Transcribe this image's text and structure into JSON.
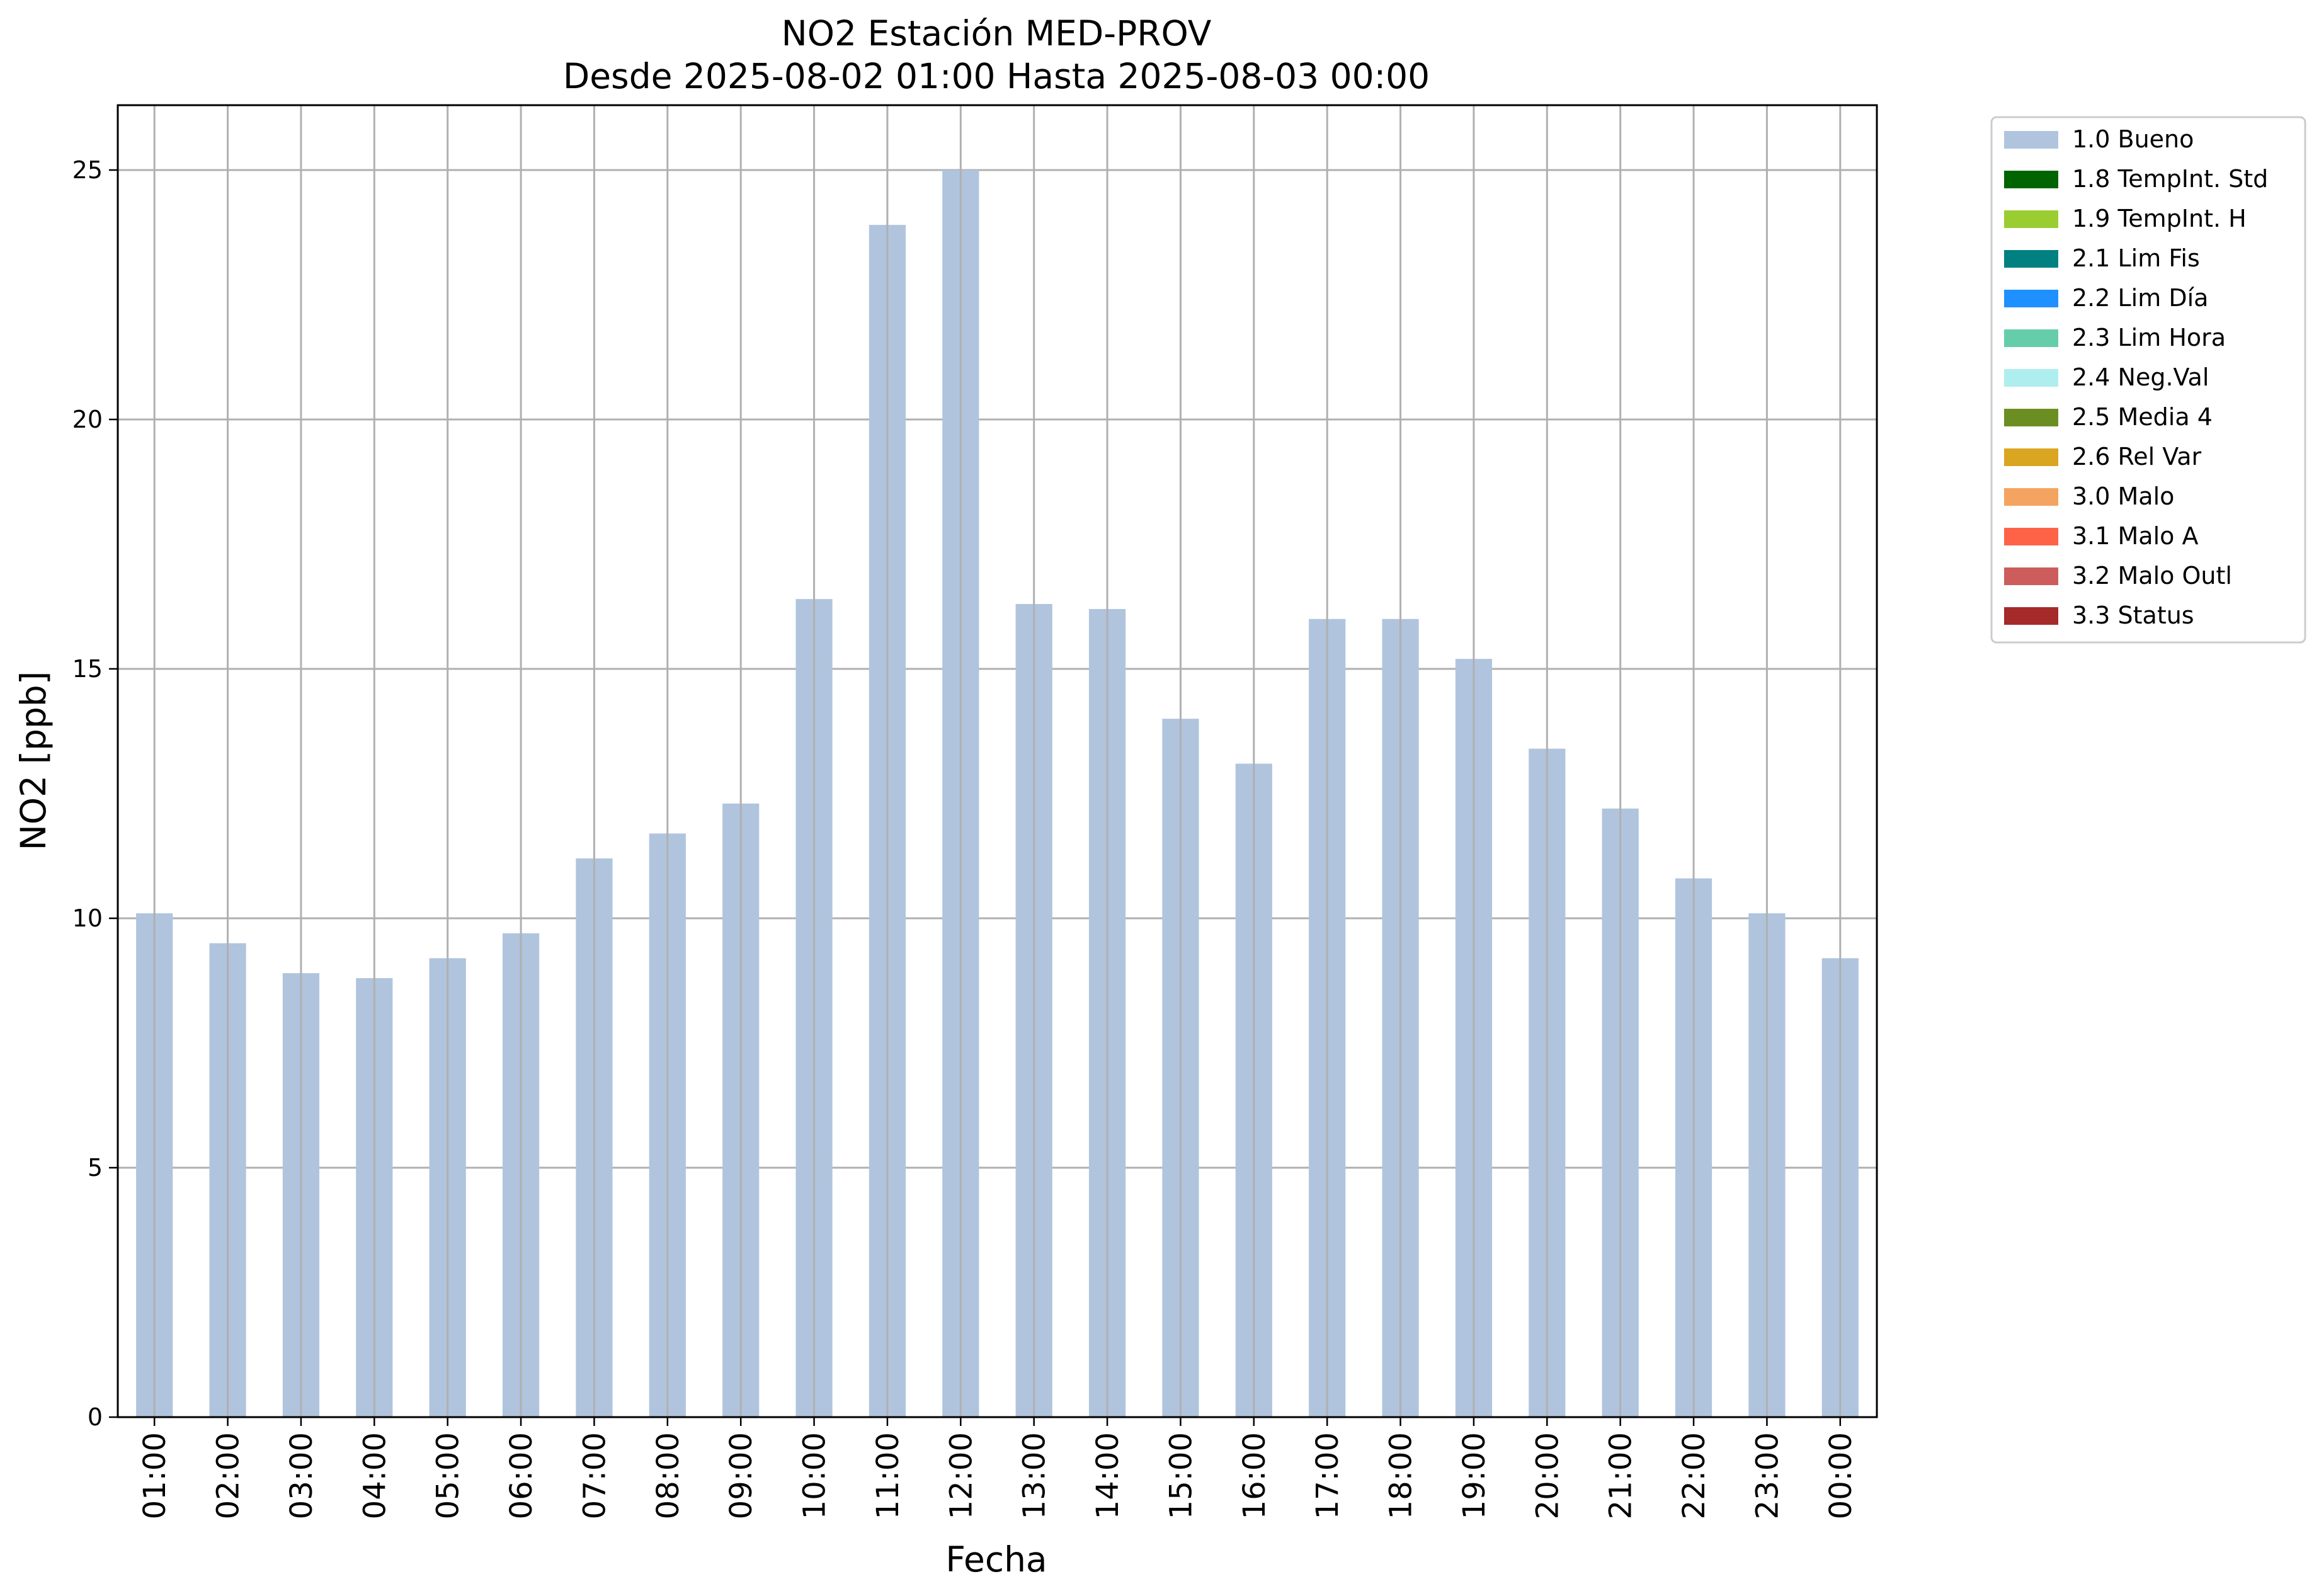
{
  "chart_data": {
    "type": "bar",
    "title": "NO2 Estación MED-PROV",
    "subtitle": "Desde 2025-08-02 01:00 Hasta 2025-08-03 00:00",
    "xlabel": "Fecha",
    "ylabel": "NO2 [ppb]",
    "ylim": [
      0,
      26.3
    ],
    "yticks": [
      0,
      5,
      10,
      15,
      20,
      25
    ],
    "grid": true,
    "legend_placement": "outside-top-right",
    "categories": [
      "01:00",
      "02:00",
      "03:00",
      "04:00",
      "05:00",
      "06:00",
      "07:00",
      "08:00",
      "09:00",
      "10:00",
      "11:00",
      "12:00",
      "13:00",
      "14:00",
      "15:00",
      "16:00",
      "17:00",
      "18:00",
      "19:00",
      "20:00",
      "21:00",
      "22:00",
      "23:00",
      "00:00"
    ],
    "series": [
      {
        "name": "1.0 Bueno",
        "color": "#b0c4de",
        "values": [
          10.1,
          9.5,
          8.9,
          8.8,
          9.2,
          9.7,
          11.2,
          11.7,
          12.3,
          16.4,
          23.9,
          25.0,
          16.3,
          16.2,
          14.0,
          13.1,
          16.0,
          16.0,
          15.2,
          13.4,
          12.2,
          10.8,
          10.1,
          9.2
        ]
      }
    ],
    "legend": [
      {
        "label": "1.0 Bueno",
        "color": "#b0c4de"
      },
      {
        "label": "1.8 TempInt. Std",
        "color": "#006400"
      },
      {
        "label": "1.9 TempInt. H",
        "color": "#9acd32"
      },
      {
        "label": "2.1 Lim Fis",
        "color": "#008080"
      },
      {
        "label": "2.2 Lim Día",
        "color": "#1e90ff"
      },
      {
        "label": "2.3 Lim Hora",
        "color": "#66cdaa"
      },
      {
        "label": "2.4 Neg.Val",
        "color": "#afeeee"
      },
      {
        "label": "2.5 Media 4",
        "color": "#6b8e23"
      },
      {
        "label": "2.6 Rel Var",
        "color": "#daa520"
      },
      {
        "label": "3.0 Malo",
        "color": "#f4a460"
      },
      {
        "label": "3.1 Malo A",
        "color": "#ff6347"
      },
      {
        "label": "3.2 Malo Outl",
        "color": "#cd5c5c"
      },
      {
        "label": "3.3 Status",
        "color": "#a52a2a"
      }
    ]
  }
}
